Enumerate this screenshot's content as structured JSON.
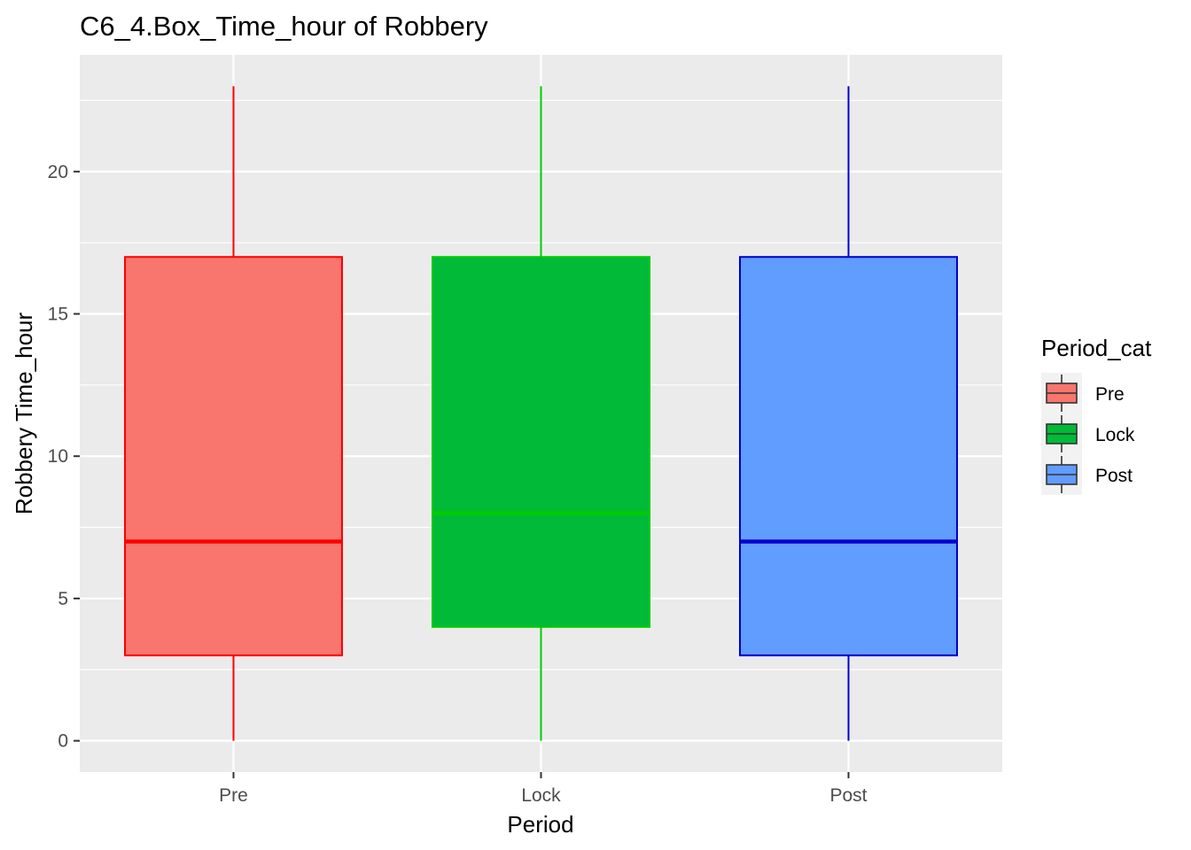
{
  "chart_data": {
    "type": "box",
    "title": "C6_4.Box_Time_hour of Robbery",
    "xlabel": "Period",
    "ylabel": "Robbery Time_hour",
    "ylim": [
      -1.1,
      24.1
    ],
    "yticks": [
      0,
      5,
      10,
      15,
      20
    ],
    "grid": true,
    "legend": {
      "title": "Period_cat",
      "position": "right",
      "items": [
        {
          "label": "Pre",
          "fill": "#F8766D",
          "stroke": "#FF0000"
        },
        {
          "label": "Lock",
          "fill": "#00BA38",
          "stroke": "#00CC00"
        },
        {
          "label": "Post",
          "fill": "#619CFF",
          "stroke": "#0000CC"
        }
      ]
    },
    "categories": [
      "Pre",
      "Lock",
      "Post"
    ],
    "boxes": [
      {
        "category": "Pre",
        "min": 0,
        "q1": 3,
        "median": 7,
        "q3": 17,
        "max": 23,
        "fill": "#F8766D",
        "stroke": "#FF0000"
      },
      {
        "category": "Lock",
        "min": 0,
        "q1": 4,
        "median": 8,
        "q3": 17,
        "max": 23,
        "fill": "#00BA38",
        "stroke": "#00CC00"
      },
      {
        "category": "Post",
        "min": 0,
        "q1": 3,
        "median": 7,
        "q3": 17,
        "max": 23,
        "fill": "#619CFF",
        "stroke": "#0000CC"
      }
    ]
  }
}
